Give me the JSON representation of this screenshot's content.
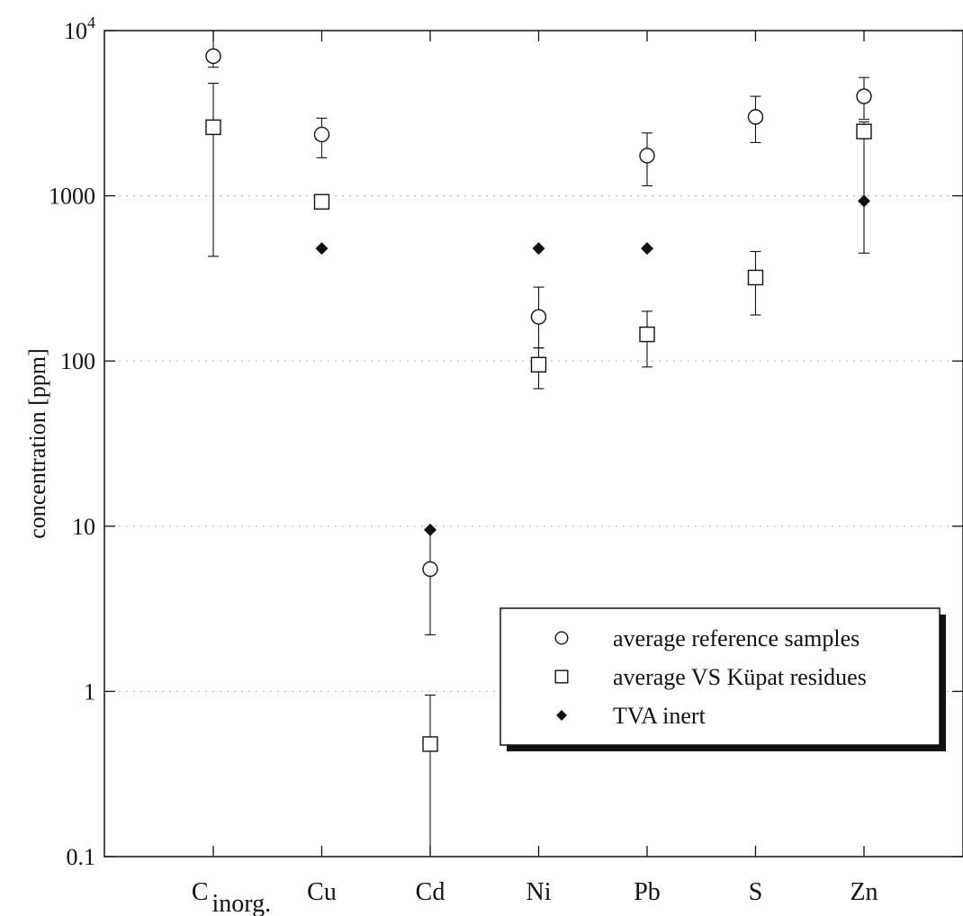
{
  "chart_data": {
    "type": "scatter",
    "title": "",
    "xlabel": "",
    "ylabel": "concentration [ppm]",
    "yscale": "log",
    "ylim": [
      0.1,
      10000
    ],
    "yticks": [
      {
        "value": 0.1,
        "label": "0.1"
      },
      {
        "value": 1,
        "label": "1"
      },
      {
        "value": 10,
        "label": "10"
      },
      {
        "value": 100,
        "label": "100"
      },
      {
        "value": 1000,
        "label": "1000"
      },
      {
        "value": 10000,
        "label": "10",
        "exp": "4"
      }
    ],
    "grid": "horizontal dotted",
    "legend_position": "bottom-right",
    "categories": [
      {
        "main": "C",
        "sub": "inorg."
      },
      {
        "main": "Cu",
        "sub": ""
      },
      {
        "main": "Cd",
        "sub": ""
      },
      {
        "main": "Ni",
        "sub": ""
      },
      {
        "main": "Pb",
        "sub": ""
      },
      {
        "main": "S",
        "sub": ""
      },
      {
        "main": "Zn",
        "sub": ""
      }
    ],
    "series": [
      {
        "name": "average reference samples",
        "marker": "open-circle",
        "values": [
          7000,
          2350,
          5.5,
          185,
          1750,
          3000,
          4000
        ],
        "err_low": [
          6000,
          1700,
          2.2,
          120,
          1150,
          2100,
          2900
        ],
        "err_high": [
          10000,
          2950,
          9.5,
          280,
          2400,
          4000,
          5200
        ]
      },
      {
        "name": "average VS Küpat residues",
        "marker": "open-square",
        "values": [
          2600,
          920,
          0.48,
          95,
          145,
          320,
          2450
        ],
        "err_low": [
          430,
          880,
          0.1,
          68,
          92,
          190,
          450
        ],
        "err_high": [
          4800,
          960,
          0.95,
          120,
          200,
          460,
          2800
        ]
      },
      {
        "name": "TVA inert",
        "marker": "filled-diamond",
        "values": [
          null,
          480,
          9.5,
          480,
          480,
          null,
          930
        ],
        "err_low": [],
        "err_high": []
      }
    ],
    "colors": {
      "ink": "#111111",
      "grid": "#bbbbbb",
      "background": "#ffffff"
    }
  }
}
